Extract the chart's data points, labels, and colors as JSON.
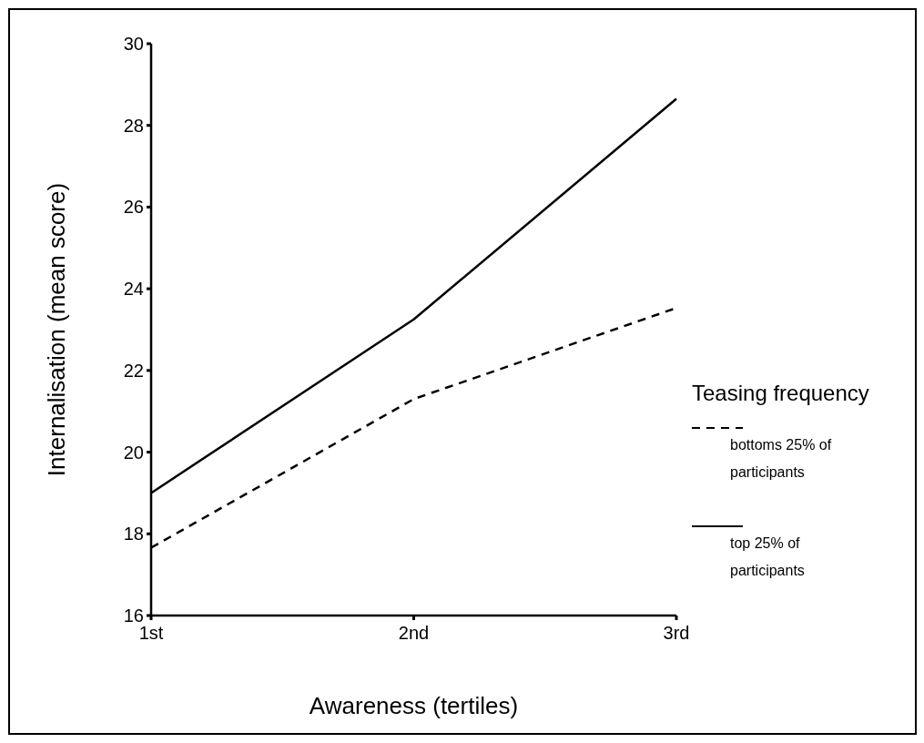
{
  "chart_data": {
    "type": "line",
    "xlabel": "Awareness (tertiles)",
    "ylabel": "Internalisation (mean score)",
    "legend_title": "Teasing frequency",
    "legend": "right",
    "categories": [
      "1st",
      "2nd",
      "3rd"
    ],
    "ylim": [
      16,
      30
    ],
    "yticks": [
      16,
      18,
      20,
      22,
      24,
      26,
      28,
      30
    ],
    "grid": false,
    "marker": "none",
    "series": [
      {
        "name": "bottoms 25% of participants",
        "color": "#000000",
        "line_style": "dashed",
        "values": [
          17.66,
          21.3,
          23.53
        ]
      },
      {
        "name": "top 25% of participants",
        "color": "#000000",
        "line_style": "solid",
        "values": [
          19.0,
          23.25,
          28.65
        ]
      }
    ]
  }
}
